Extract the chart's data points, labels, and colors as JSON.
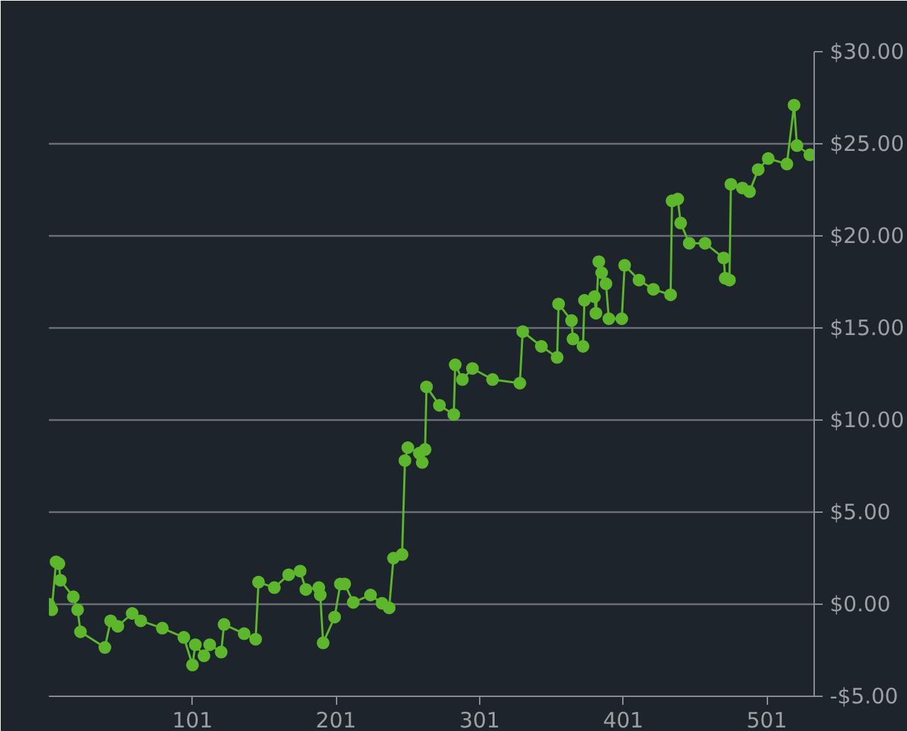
{
  "chart_data": {
    "type": "line",
    "marker": "circle",
    "grid": "y",
    "xlim": [
      1,
      534
    ],
    "xticks": [
      101,
      201,
      301,
      401,
      501
    ],
    "ylim": [
      -5,
      30
    ],
    "yticks": [
      {
        "value": -5,
        "label": "-$5.00"
      },
      {
        "value": 0,
        "label": "$0.00"
      },
      {
        "value": 5,
        "label": "$5.00"
      },
      {
        "value": 10,
        "label": "$10.00"
      },
      {
        "value": 15,
        "label": "$15.00"
      },
      {
        "value": 20,
        "label": "$20.00"
      },
      {
        "value": 25,
        "label": "$25.00"
      },
      {
        "value": 30,
        "label": "$30.00"
      }
    ],
    "series": [
      {
        "color": "#5cb82a",
        "x": [
          1,
          3,
          6,
          8,
          9,
          18,
          21,
          23,
          40,
          44,
          49,
          59,
          65,
          80,
          95,
          101,
          103,
          109,
          113,
          121,
          123,
          137,
          145,
          147,
          158,
          168,
          176,
          180,
          189,
          190,
          192,
          200,
          204,
          207,
          213,
          225,
          233,
          238,
          241,
          247,
          249,
          251,
          259,
          261,
          263,
          264,
          273,
          283,
          284,
          289,
          296,
          310,
          329,
          331,
          344,
          355,
          356,
          365,
          366,
          373,
          374,
          381,
          382,
          384,
          386,
          389,
          391,
          400,
          402,
          412,
          422,
          434,
          435,
          439,
          441,
          447,
          458,
          471,
          472,
          475,
          476,
          484,
          489,
          495,
          502,
          515,
          520,
          522,
          531
        ],
        "values": [
          0,
          -0.3,
          2.3,
          2.2,
          1.3,
          0.4,
          -0.3,
          -1.5,
          -2.35,
          -0.9,
          -1.2,
          -0.5,
          -0.9,
          -1.3,
          -1.8,
          -3.3,
          -2.2,
          -2.8,
          -2.2,
          -2.6,
          -1.1,
          -1.6,
          -1.9,
          1.2,
          0.9,
          1.6,
          1.8,
          0.8,
          0.9,
          0.5,
          -2.1,
          -0.7,
          1.1,
          1.1,
          0.1,
          0.5,
          0.05,
          -0.2,
          2.5,
          2.7,
          7.8,
          8.5,
          8.2,
          7.7,
          8.4,
          11.8,
          10.8,
          10.3,
          13.0,
          12.2,
          12.8,
          12.2,
          12.0,
          14.8,
          14.0,
          13.4,
          16.3,
          15.4,
          14.4,
          14.0,
          16.5,
          16.7,
          15.8,
          18.6,
          18.0,
          17.4,
          15.5,
          15.5,
          18.4,
          17.6,
          17.1,
          16.8,
          21.9,
          22.0,
          20.7,
          19.6,
          19.6,
          18.8,
          17.7,
          17.6,
          22.8,
          22.6,
          22.4,
          23.6,
          24.2,
          23.9,
          27.1,
          24.9,
          24.4
        ]
      }
    ]
  }
}
